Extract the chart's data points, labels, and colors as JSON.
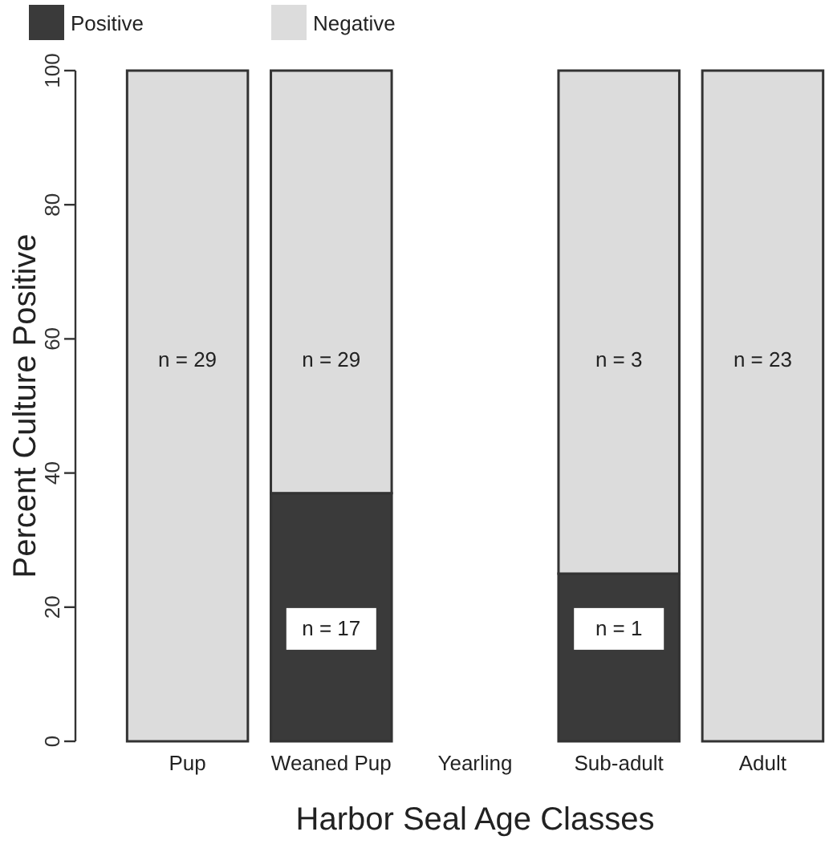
{
  "chart_data": {
    "type": "bar",
    "stacked": true,
    "xlabel": "Harbor Seal Age Classes",
    "ylabel": "Percent Culture Positive",
    "categories": [
      "Pup",
      "Weaned Pup",
      "Yearling",
      "Sub-adult",
      "Adult"
    ],
    "series": [
      {
        "name": "Positive",
        "color": "#3a3a3a",
        "values": [
          0,
          37,
          0,
          25,
          0
        ]
      },
      {
        "name": "Negative",
        "color": "#dcdcdc",
        "values": [
          100,
          63,
          0,
          75,
          100
        ]
      }
    ],
    "ylim": [
      0,
      100
    ],
    "yticks": [
      0,
      20,
      40,
      60,
      80,
      100
    ],
    "legend": "top left",
    "grid": false,
    "annotations": [
      "n = 29",
      "n = 29",
      "n = 17",
      "n = 3",
      "n = 1",
      "n = 23"
    ]
  }
}
